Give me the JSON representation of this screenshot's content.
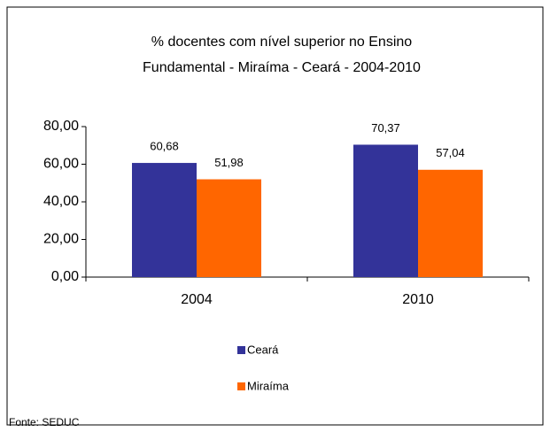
{
  "chart_data": {
    "type": "bar",
    "title": [
      "% docentes com nível  superior no Ensino",
      "Fundamental - Miraíma  -  Ceará - 2004-2010"
    ],
    "categories": [
      "2004",
      "2010"
    ],
    "series": [
      {
        "name": "Ceará",
        "color": "#333399",
        "values": [
          60.68,
          70.37
        ],
        "value_labels": [
          "60,68",
          "70,37"
        ]
      },
      {
        "name": "Miraíma",
        "color": "#FF6600",
        "values": [
          51.98,
          57.04
        ],
        "value_labels": [
          "51,98",
          "57,04"
        ]
      }
    ],
    "ylim": [
      0,
      80
    ],
    "yticks": [
      {
        "value": 0,
        "label": "0,00"
      },
      {
        "value": 20,
        "label": "20,00"
      },
      {
        "value": 40,
        "label": "40,00"
      },
      {
        "value": 60,
        "label": "60,00"
      },
      {
        "value": 80,
        "label": "80,00"
      }
    ],
    "grid": false,
    "legend": "bottom",
    "source": "Fonte: SEDUC"
  }
}
